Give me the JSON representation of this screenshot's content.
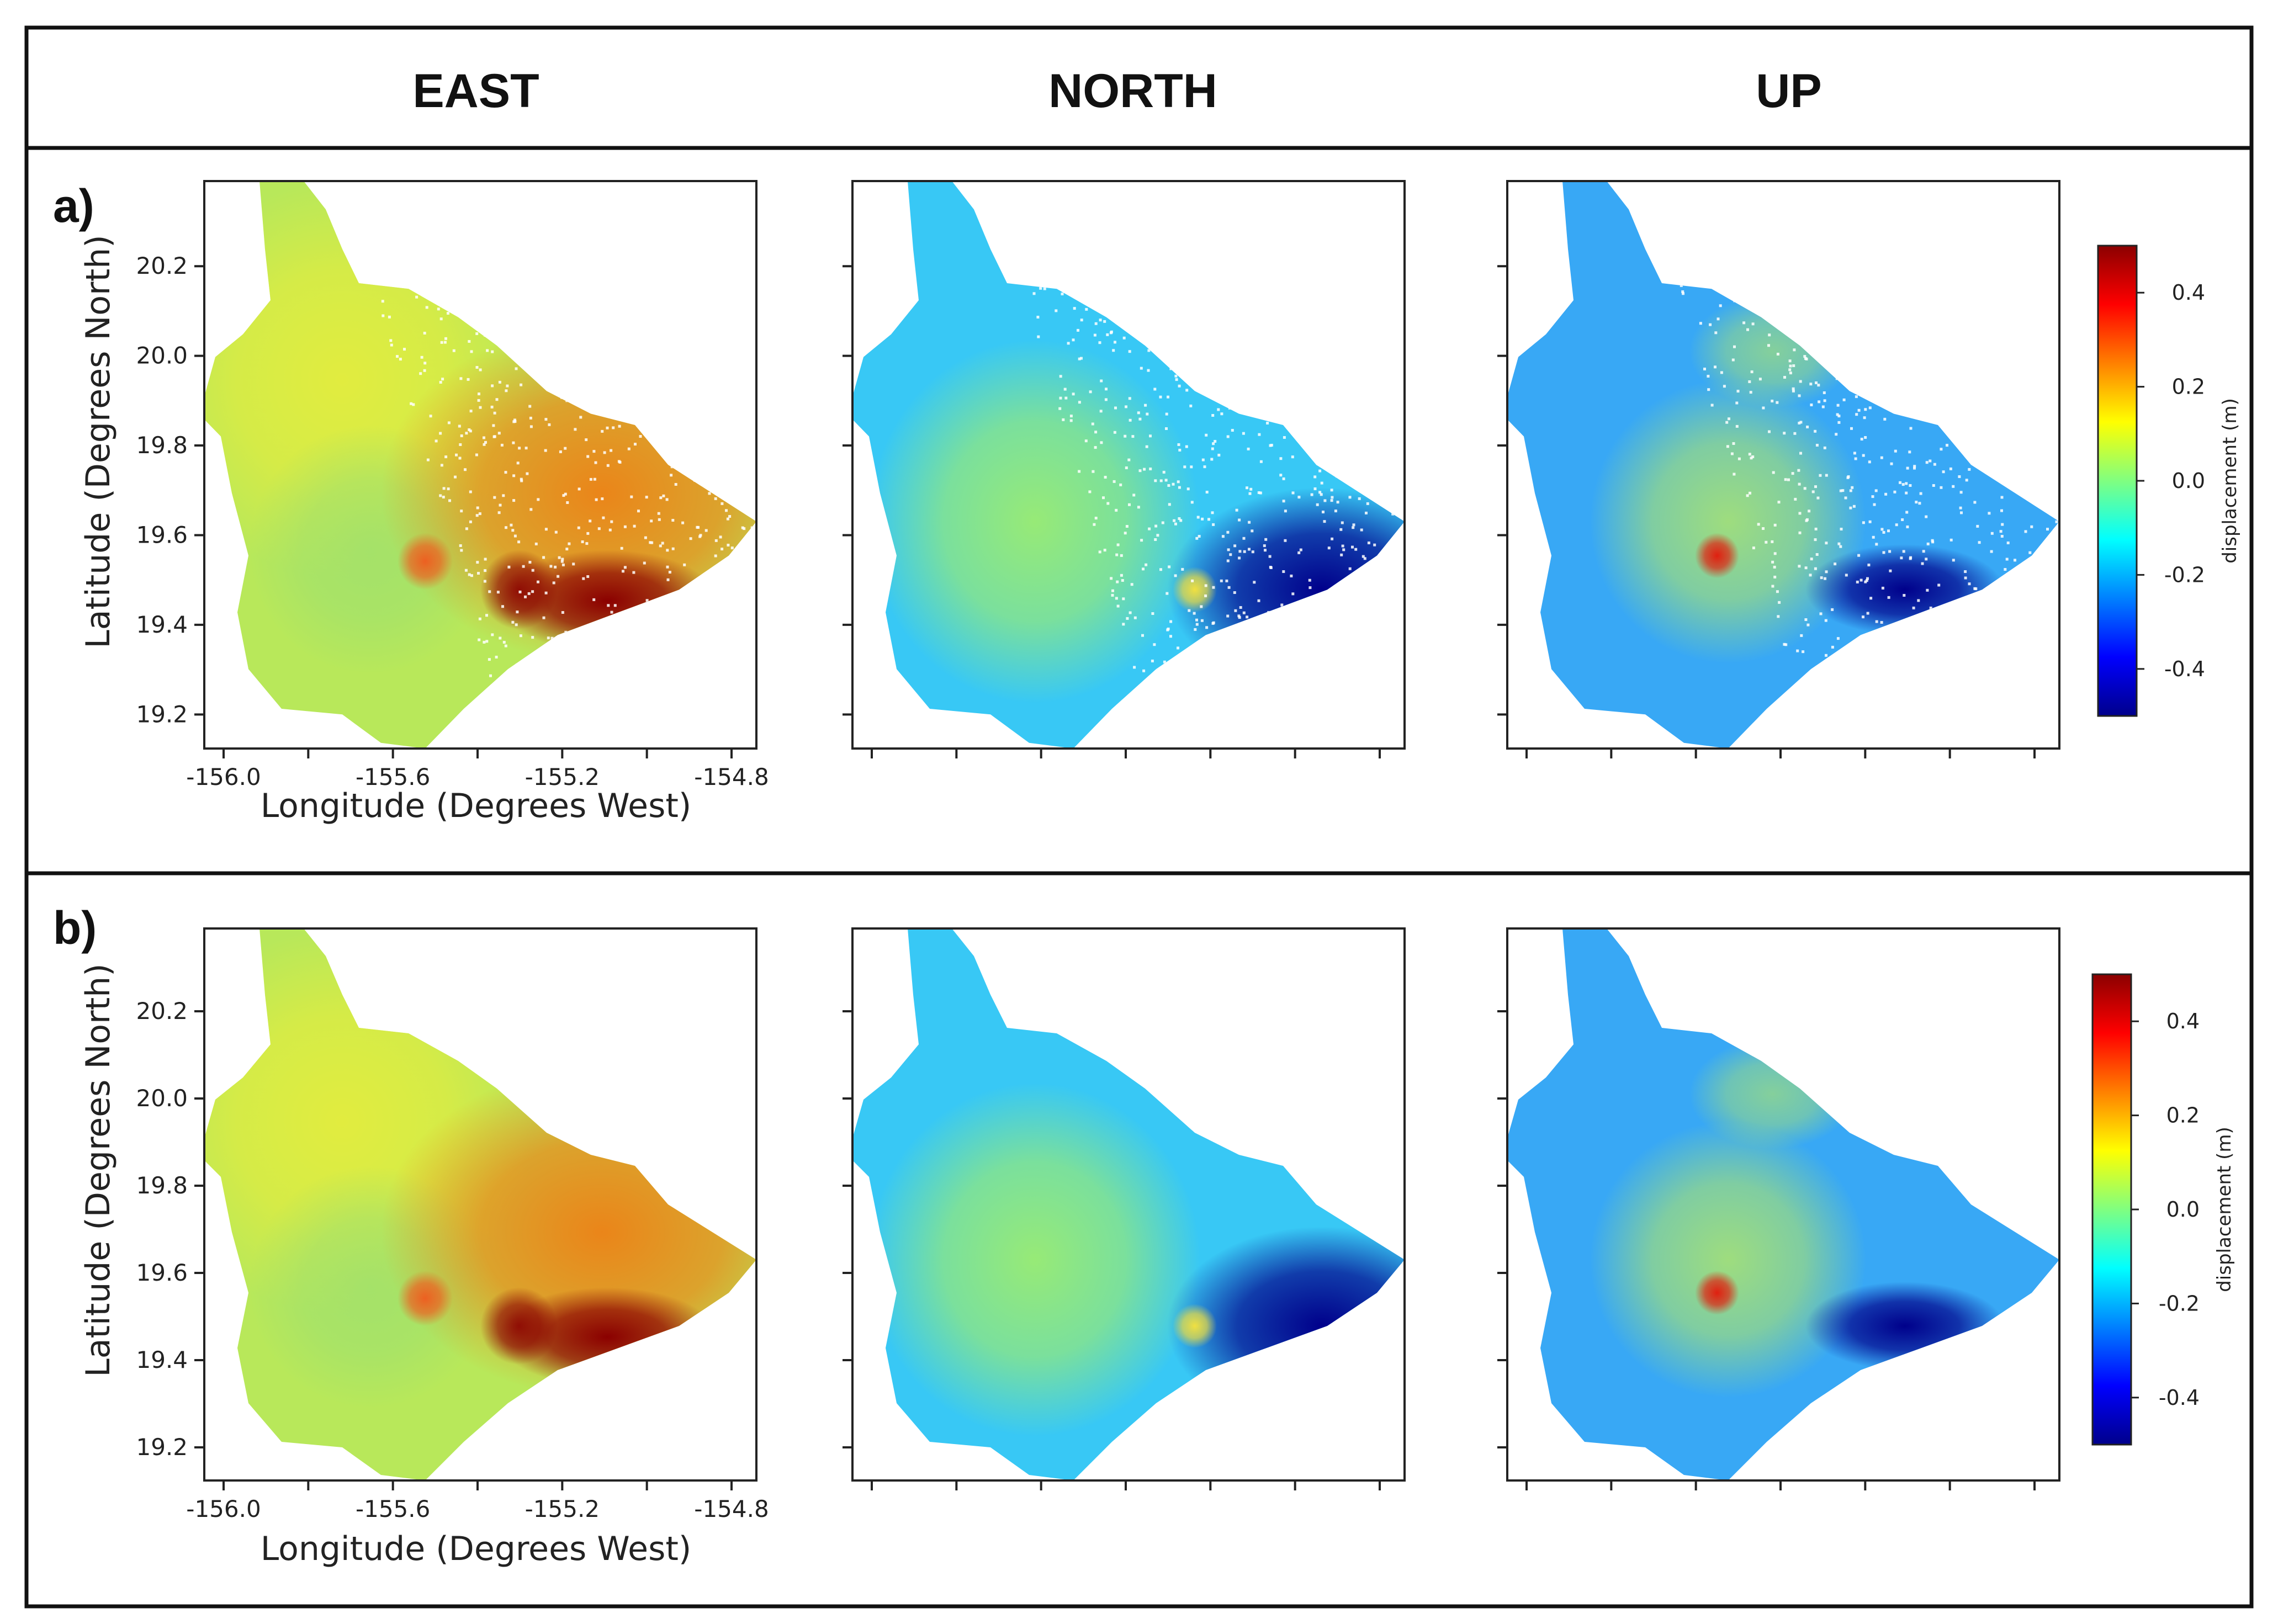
{
  "header": {
    "columns": [
      "EAST",
      "NORTH",
      "UP"
    ]
  },
  "panels": [
    {
      "label": "a)",
      "maps": [
        {
          "component": "east",
          "stipple": true
        },
        {
          "component": "north",
          "stipple": true
        },
        {
          "component": "up",
          "stipple": true
        }
      ]
    },
    {
      "label": "b)",
      "maps": [
        {
          "component": "east",
          "stipple": false
        },
        {
          "component": "north",
          "stipple": false
        },
        {
          "component": "up",
          "stipple": false
        }
      ]
    }
  ],
  "axes": {
    "xlabel": "Longitude (Degrees West)",
    "ylabel": "Latitude (Degrees North)",
    "xticks": [
      "-156.0",
      "-155.6",
      "-155.2",
      "-154.8"
    ],
    "yticks": [
      "20.2",
      "20.0",
      "19.8",
      "19.6",
      "19.4",
      "19.2"
    ]
  },
  "colorbar": {
    "label": "displacement (m)",
    "ticks": [
      "0.4",
      "0.2",
      "0.0",
      "-0.2",
      "-0.4"
    ],
    "range": [
      -0.5,
      0.5
    ],
    "colormap": "jet",
    "colors": [
      "#00008b",
      "#0000ff",
      "#0080ff",
      "#00ffff",
      "#80ff80",
      "#ffff00",
      "#ff8000",
      "#ff0000",
      "#8b0000"
    ]
  },
  "fills": {
    "east": {
      "base": "#b8e85a",
      "west": "#e6ed3c",
      "southwest": "#9ee06e",
      "east_rift": "#f07a12",
      "hotspot": "#8b0000",
      "summit": "#f05a1e"
    },
    "north": {
      "base": "#38c8f5",
      "center": "#a8f060",
      "east_rift": "#00008b",
      "summit": "#f0e040"
    },
    "up": {
      "base": "#38a8f5",
      "center": "#b8ea60",
      "east_rift": "#00008b",
      "summit": "#e02010"
    }
  }
}
